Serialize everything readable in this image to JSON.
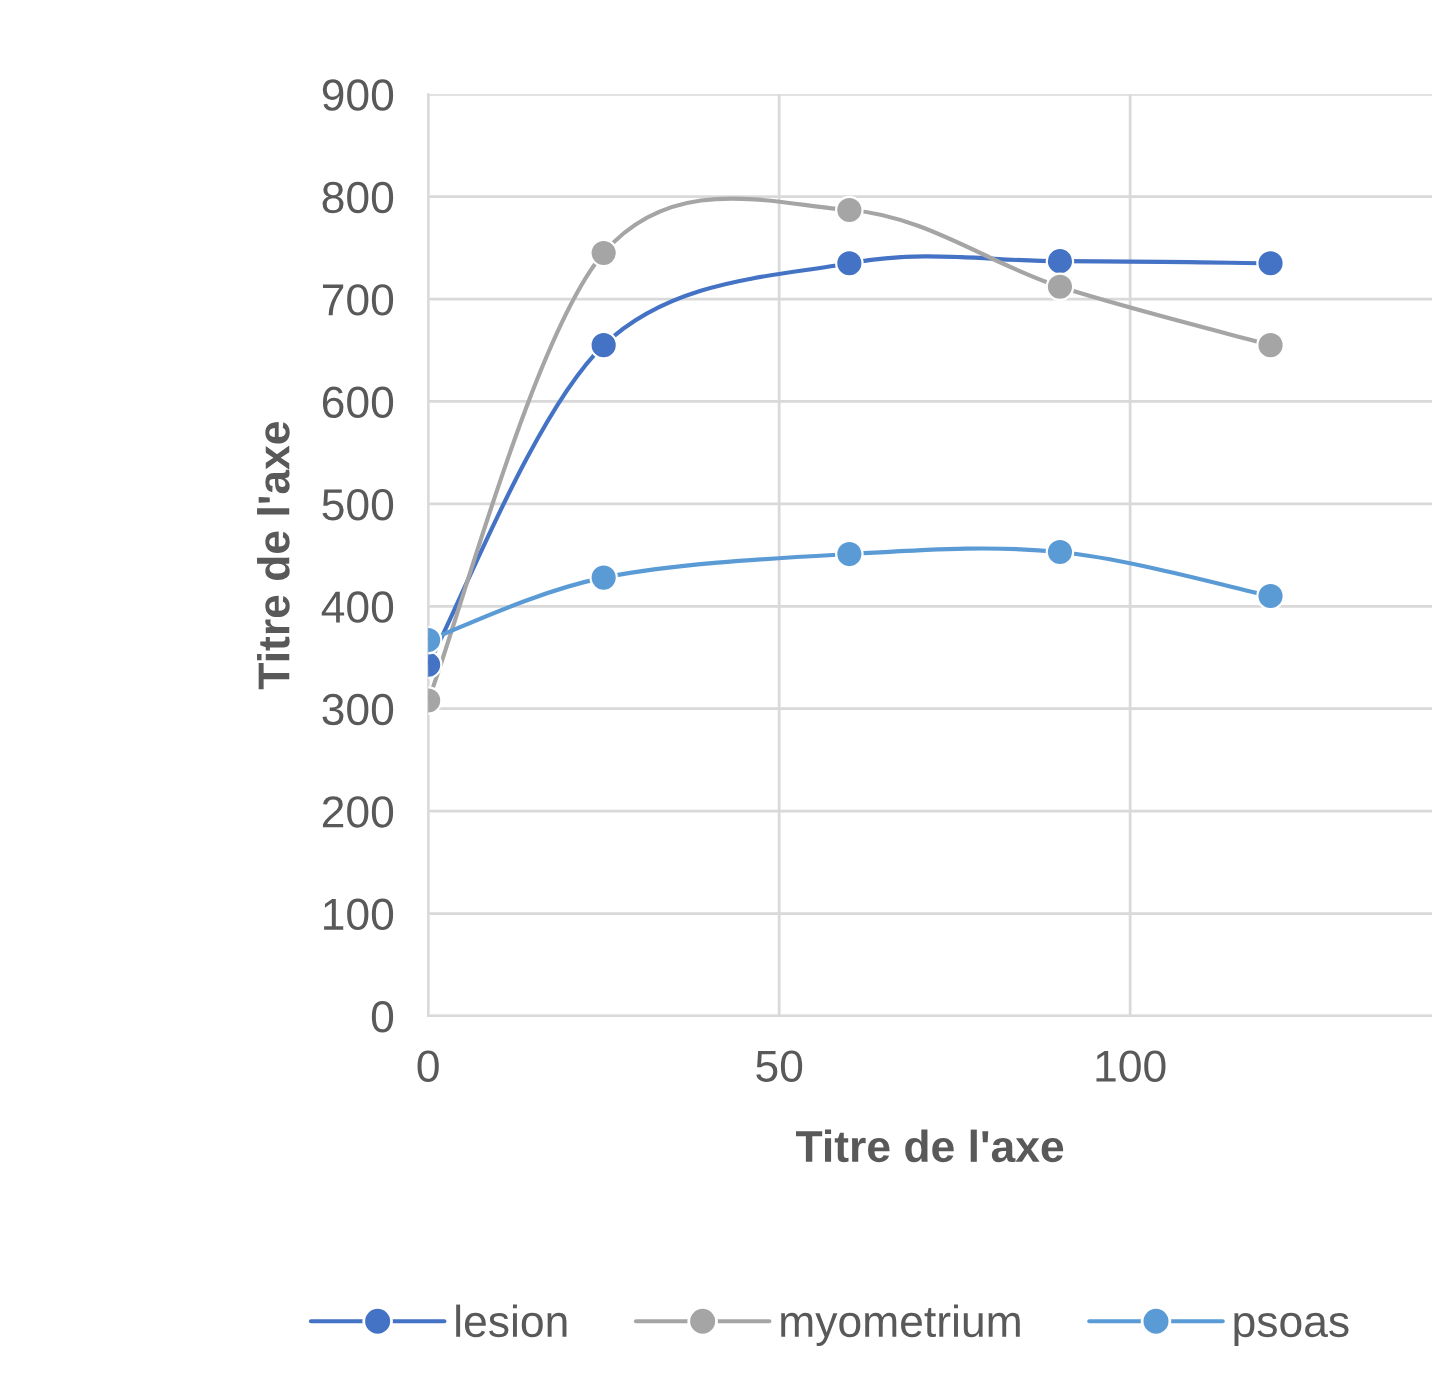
{
  "chart_data": {
    "type": "line",
    "xlabel": "Titre de l'axe",
    "ylabel": "Titre de l'axe",
    "x": [
      0,
      25,
      60,
      90,
      120
    ],
    "series": [
      {
        "name": "lesion",
        "color": "#4472c4",
        "values": [
          343,
          655,
          735,
          737,
          735
        ]
      },
      {
        "name": "myometrium",
        "color": "#a5a5a5",
        "values": [
          308,
          745,
          787,
          712,
          655
        ]
      },
      {
        "name": "psoas",
        "color": "#5b9bd5",
        "values": [
          367,
          428,
          451,
          453,
          410
        ]
      }
    ],
    "xlim": [
      0,
      143
    ],
    "xticks": [
      0,
      50,
      100
    ],
    "ylim": [
      0,
      900
    ],
    "yticks": [
      0,
      100,
      200,
      300,
      400,
      500,
      600,
      700,
      800,
      900
    ],
    "grid": true,
    "legend": "bottom",
    "marker": "circle",
    "line_style": "solid"
  }
}
